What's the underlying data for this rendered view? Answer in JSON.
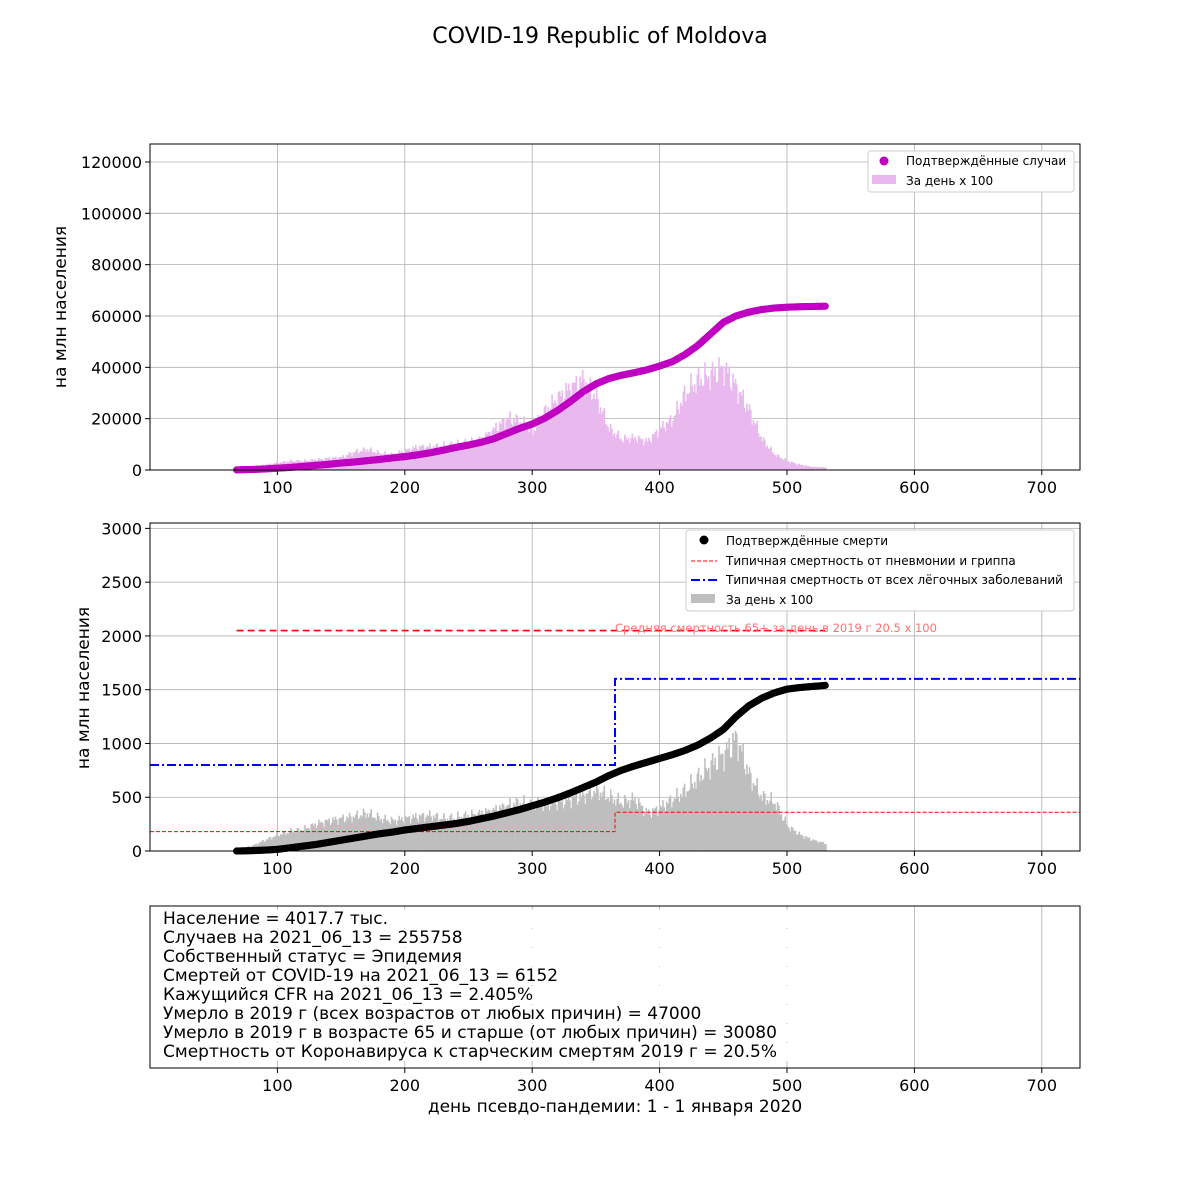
{
  "title": "COVID-19 Republic of Moldova",
  "colors": {
    "cases": "#c000c0",
    "cases_bar": "#e8b8ee",
    "deaths": "#000000",
    "deaths_bar": "#bebebe",
    "flu": "#ff0000",
    "lung": "#0000ff"
  },
  "chart_data": [
    {
      "type": "line",
      "panel": "cases",
      "ylabel": "на млн населения",
      "xlim": [
        0,
        730
      ],
      "ylim": [
        0,
        127000
      ],
      "x_ticks": [
        100,
        200,
        300,
        400,
        500,
        600,
        700
      ],
      "y_ticks": [
        0,
        20000,
        40000,
        60000,
        80000,
        100000,
        120000
      ],
      "grid": true,
      "legend_position": "top-right",
      "series": [
        {
          "name": "Подтверждённые случаи",
          "style": "scatter",
          "x": [
            68,
            80,
            90,
            100,
            110,
            120,
            130,
            140,
            150,
            160,
            170,
            180,
            190,
            200,
            210,
            220,
            230,
            240,
            250,
            260,
            270,
            280,
            290,
            300,
            310,
            320,
            330,
            340,
            350,
            360,
            370,
            380,
            390,
            400,
            410,
            420,
            430,
            440,
            450,
            460,
            470,
            480,
            490,
            500,
            510,
            520,
            530
          ],
          "y": [
            50,
            200,
            400,
            700,
            1000,
            1400,
            1800,
            2200,
            2700,
            3100,
            3600,
            4100,
            4700,
            5200,
            5900,
            6700,
            7700,
            8800,
            9700,
            10800,
            12200,
            14200,
            16200,
            17900,
            20200,
            23200,
            26700,
            30500,
            33500,
            35600,
            36900,
            37900,
            39000,
            40500,
            42200,
            45000,
            48500,
            53000,
            57500,
            60000,
            61500,
            62500,
            63100,
            63400,
            63600,
            63700,
            63800
          ]
        },
        {
          "name": "За день x 100",
          "style": "bar",
          "x": [
            70,
            80,
            90,
            100,
            110,
            120,
            130,
            140,
            150,
            160,
            170,
            180,
            190,
            200,
            210,
            220,
            230,
            240,
            250,
            260,
            270,
            280,
            290,
            300,
            310,
            320,
            330,
            340,
            350,
            360,
            370,
            380,
            390,
            400,
            410,
            420,
            430,
            440,
            450,
            460,
            470,
            480,
            490,
            500,
            510,
            520,
            530
          ],
          "y": [
            600,
            1200,
            2000,
            2800,
            3500,
            3500,
            4000,
            4500,
            5000,
            7000,
            8000,
            6500,
            6000,
            7500,
            9000,
            9000,
            9500,
            10000,
            11000,
            12000,
            16000,
            20000,
            19000,
            15000,
            23000,
            28000,
            32000,
            35000,
            28000,
            16000,
            12000,
            12500,
            11000,
            16000,
            20000,
            30000,
            35000,
            37000,
            40000,
            32000,
            23000,
            12000,
            6000,
            3500,
            2000,
            1200,
            1000
          ]
        }
      ]
    },
    {
      "type": "line",
      "panel": "deaths",
      "ylabel": "на млн населения",
      "xlim": [
        0,
        730
      ],
      "ylim": [
        0,
        3050
      ],
      "x_ticks": [
        100,
        200,
        300,
        400,
        500,
        600,
        700
      ],
      "y_ticks": [
        0,
        500,
        1000,
        1500,
        2000,
        2500,
        3000
      ],
      "grid": true,
      "legend_position": "top-right",
      "annotation": "Средняя смертность 65+ за день в 2019 г 20.5 x 100",
      "series": [
        {
          "name": "Подтверждённые смерти",
          "style": "scatter",
          "x": [
            68,
            80,
            90,
            100,
            110,
            120,
            130,
            140,
            150,
            160,
            170,
            180,
            190,
            200,
            210,
            220,
            230,
            240,
            250,
            260,
            270,
            280,
            290,
            300,
            310,
            320,
            330,
            340,
            350,
            360,
            370,
            380,
            390,
            400,
            410,
            420,
            430,
            440,
            450,
            460,
            470,
            480,
            490,
            500,
            510,
            520,
            530
          ],
          "y": [
            0,
            3,
            8,
            15,
            30,
            45,
            60,
            80,
            100,
            120,
            140,
            160,
            175,
            195,
            210,
            225,
            240,
            255,
            275,
            300,
            325,
            355,
            385,
            420,
            455,
            495,
            540,
            590,
            640,
            700,
            750,
            790,
            825,
            860,
            895,
            935,
            985,
            1050,
            1130,
            1250,
            1350,
            1420,
            1470,
            1505,
            1520,
            1530,
            1540
          ]
        },
        {
          "name": "Типичная смертность от пневмонии и гриппа",
          "style": "step-dashed",
          "x": [
            0,
            365,
            365,
            730
          ],
          "y": [
            180,
            180,
            360,
            360
          ]
        },
        {
          "name": "Типичная смертность от всех лёгочных заболеваний",
          "style": "step-dashdot",
          "x": [
            0,
            365,
            365,
            730
          ],
          "y": [
            800,
            800,
            1600,
            1600
          ]
        },
        {
          "name": "За день x 100",
          "style": "bar",
          "x": [
            70,
            80,
            90,
            100,
            110,
            120,
            130,
            140,
            150,
            160,
            170,
            180,
            190,
            200,
            210,
            220,
            230,
            240,
            250,
            260,
            270,
            280,
            290,
            300,
            310,
            320,
            330,
            340,
            350,
            360,
            370,
            380,
            390,
            400,
            410,
            420,
            430,
            440,
            450,
            460,
            470,
            480,
            490,
            500,
            510,
            520,
            530
          ],
          "y": [
            20,
            50,
            100,
            150,
            180,
            200,
            250,
            280,
            300,
            320,
            350,
            300,
            280,
            300,
            320,
            330,
            300,
            310,
            330,
            350,
            380,
            420,
            450,
            420,
            430,
            450,
            480,
            520,
            560,
            500,
            450,
            480,
            350,
            400,
            480,
            560,
            680,
            800,
            900,
            1050,
            700,
            500,
            450,
            230,
            150,
            100,
            70
          ]
        },
        {
          "name": "",
          "style": "reference-dashed",
          "x": [
            68,
            530
          ],
          "y": [
            2050,
            2050
          ]
        }
      ]
    }
  ],
  "info_panel": {
    "lines": [
      "Население = 4017.7 тыс.",
      "Случаев на 2021_06_13 = 255758",
      "Собственный статус = Эпидемия",
      "Смертей от COVID-19 на 2021_06_13 = 6152",
      "Кажущийся CFR на 2021_06_13 = 2.405%",
      "Умерло в 2019 г (всех возрастов от любых причин) = 47000",
      "Умерло в 2019 г в возрасте 65 и старше (от любых причин) = 30080",
      "Смертность от Коронавируса к старческим смертям 2019 г = 20.5%"
    ],
    "x_ticks": [
      100,
      200,
      300,
      400,
      500,
      600,
      700
    ],
    "xlabel": "день псевдо-пандемии: 1 - 1 января 2020"
  }
}
